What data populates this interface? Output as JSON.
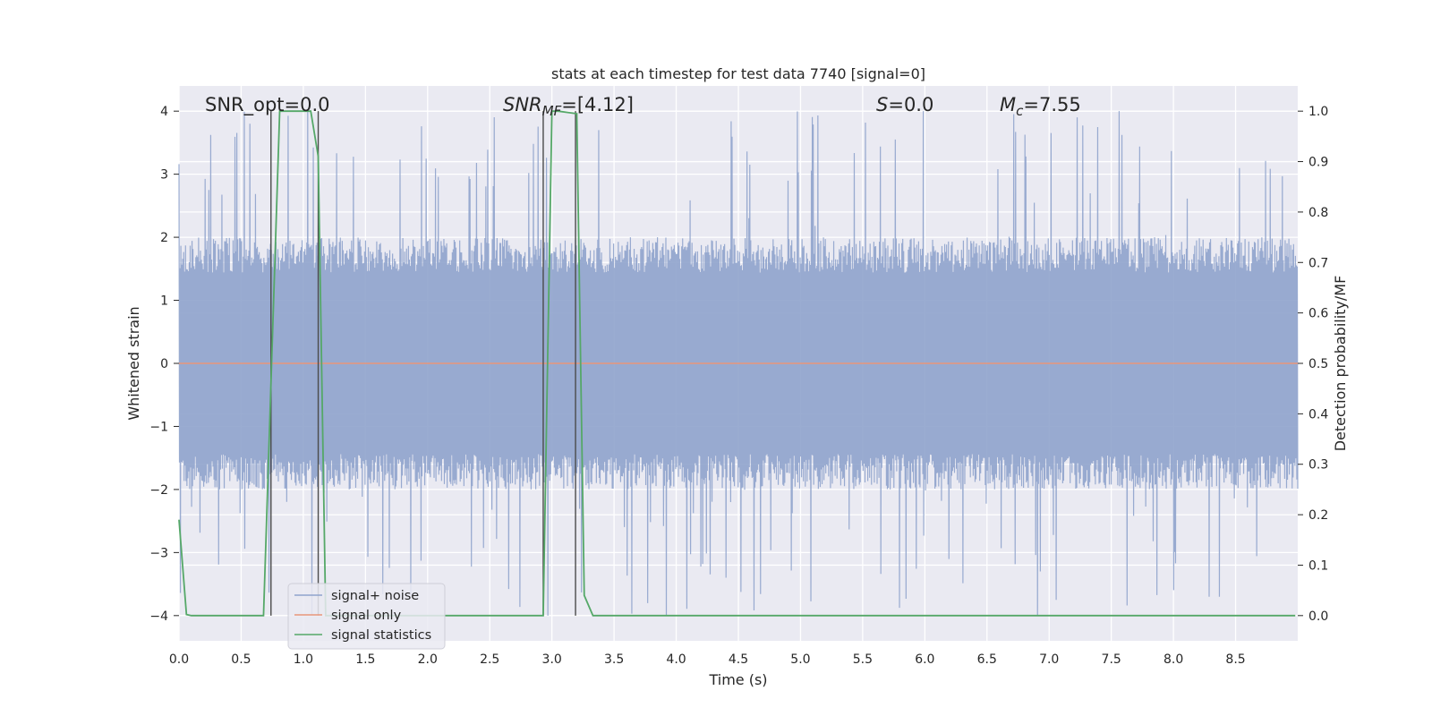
{
  "chart_data": {
    "type": "line",
    "title": "stats at each timestep for test data 7740 [signal=0]",
    "xlabel": "Time (s)",
    "ylabel_left": "Whitened strain",
    "ylabel_right": "Detection probability/MF",
    "xlim": [
      0,
      9
    ],
    "ylim_left": [
      -4.4,
      4.4
    ],
    "ylim_right": [
      -0.05,
      1.05
    ],
    "x_ticks": [
      0.0,
      0.5,
      1.0,
      1.5,
      2.0,
      2.5,
      3.0,
      3.5,
      4.0,
      4.5,
      5.0,
      5.5,
      6.0,
      6.5,
      7.0,
      7.5,
      8.0,
      8.5
    ],
    "x_tick_labels": [
      "0.0",
      "0.5",
      "1.0",
      "1.5",
      "2.0",
      "2.5",
      "3.0",
      "3.5",
      "4.0",
      "4.5",
      "5.0",
      "5.5",
      "6.0",
      "6.5",
      "7.0",
      "7.5",
      "8.0",
      "8.5"
    ],
    "y_left_ticks": [
      -4,
      -3,
      -2,
      -1,
      0,
      1,
      2,
      3,
      4
    ],
    "y_left_tick_labels": [
      "−4",
      "−3",
      "−2",
      "−1",
      "0",
      "1",
      "2",
      "3",
      "4"
    ],
    "y_right_ticks": [
      0.0,
      0.1,
      0.2,
      0.3,
      0.4,
      0.5,
      0.6,
      0.7,
      0.8,
      0.9,
      1.0
    ],
    "y_right_tick_labels": [
      "0.0",
      "0.1",
      "0.2",
      "0.3",
      "0.4",
      "0.5",
      "0.6",
      "0.7",
      "0.8",
      "0.9",
      "1.0"
    ],
    "grid": true,
    "legend_position": "lower-left",
    "annotations": {
      "snr_opt": "SNR_opt=0.0",
      "snr_mf_base": "SNR",
      "snr_mf_sub": "MF",
      "snr_mf_value": "=[4.12]",
      "s_symbol": "S",
      "s_value": "=0.0",
      "mc_base": "M",
      "mc_sub": "c",
      "mc_value": "=7.55"
    },
    "series": [
      {
        "name": "signal+ noise",
        "axis": "left",
        "color": "#8fa3cc",
        "noise_band": {
          "x_range": [
            0,
            9
          ],
          "typical_amplitude": 1.6,
          "peak_amplitude": 4.0
        }
      },
      {
        "name": "signal only",
        "axis": "left",
        "color": "#e8967a",
        "x": [
          0,
          9
        ],
        "y": [
          0,
          0
        ]
      },
      {
        "name": "signal statistics",
        "axis": "right",
        "color": "#55a868",
        "x": [
          0.0,
          0.06,
          0.1,
          0.68,
          0.81,
          1.06,
          1.12,
          1.18,
          2.93,
          3.0,
          3.05,
          3.2,
          3.26,
          3.33,
          8.98
        ],
        "y": [
          0.19,
          0.002,
          0.0,
          0.0,
          1.0,
          1.0,
          0.91,
          0.0,
          0.0,
          1.0,
          1.0,
          0.995,
          0.04,
          0.0,
          0.0
        ]
      }
    ],
    "vertical_lines": {
      "color": "#4a4a4a",
      "x": [
        0.74,
        1.12,
        2.93,
        3.19
      ],
      "y_range_right": [
        0.0,
        1.0
      ]
    }
  }
}
